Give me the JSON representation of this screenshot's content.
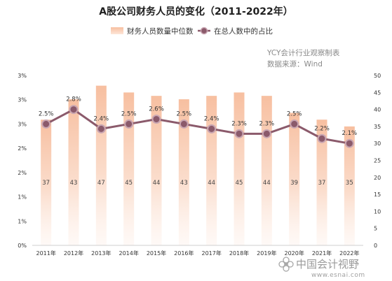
{
  "chart_data": {
    "type": "bar+line",
    "title": "A股公司财务人员的变化（2011-2022年）",
    "source_lines": [
      "YCY会计行业观察制表",
      "数据来源：Wind"
    ],
    "categories": [
      "2011年",
      "2012年",
      "2013年",
      "2014年",
      "2015年",
      "2016年",
      "2017年",
      "2018年",
      "2019年",
      "2020年",
      "2021年",
      "2022年"
    ],
    "series": [
      {
        "name": "财务人员数量中位数",
        "type": "bar",
        "axis": "right",
        "color": "#f7c4a6",
        "values": [
          37,
          43,
          47,
          45,
          44,
          43,
          44,
          45,
          44,
          39,
          37,
          35
        ],
        "labels": [
          "37",
          "43",
          "47",
          "45",
          "44",
          "43",
          "44",
          "45",
          "44",
          "39",
          "37",
          "35"
        ]
      },
      {
        "name": "在总人数中的占比",
        "type": "line",
        "axis": "left",
        "color": "#8b5a6b",
        "values": [
          2.5,
          2.8,
          2.4,
          2.5,
          2.6,
          2.5,
          2.4,
          2.3,
          2.3,
          2.5,
          2.2,
          2.1
        ],
        "labels": [
          "2.5%",
          "2.8%",
          "2.4%",
          "2.5%",
          "2.6%",
          "2.5%",
          "2.4%",
          "2.3%",
          "2.3%",
          "2.5%",
          "2.2%",
          "2.1%"
        ]
      }
    ],
    "left_axis": {
      "ticks": [
        "0%",
        "1%",
        "1%",
        "2%",
        "2%",
        "3%",
        "3%",
        "3%"
      ],
      "ylim": [
        0,
        3.5
      ]
    },
    "right_axis": {
      "ticks": [
        "0",
        "5",
        "10",
        "15",
        "20",
        "25",
        "30",
        "35",
        "40",
        "45",
        "50"
      ],
      "ylim": [
        0,
        50
      ]
    },
    "grid": false,
    "legend_position": "top"
  },
  "watermark": {
    "text": "中国会计视野",
    "url": "www.esnai.com"
  }
}
